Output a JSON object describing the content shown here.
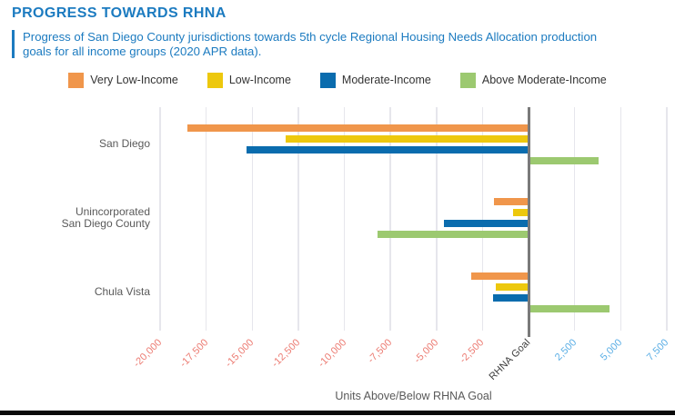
{
  "header": {
    "title": "PROGRESS TOWARDS RHNA",
    "subtitle": "Progress of San Diego County jurisdictions towards 5th cycle Regional Housing Needs Allocation production goals for all income groups (2020 APR data)."
  },
  "colors": {
    "accent_blue": "#1C7BC0",
    "negative_tick": "#EC7B72",
    "positive_tick": "#5AAEE5",
    "zero_tick": "#3D3D3D",
    "axis_text": "#595959",
    "gridline": "#E6E6EC",
    "zero_line": "#7A7A7A",
    "legend_text": "#333333",
    "bottom_bar": "#0A0A0A"
  },
  "chart_data": {
    "type": "bar",
    "orientation": "horizontal",
    "title": "PROGRESS TOWARDS RHNA",
    "xlabel": "Units Above/Below RHNA Goal",
    "ylabel": "",
    "xlim": [
      -20000,
      7500
    ],
    "grid": true,
    "legend_position": "top-center",
    "categories": [
      "San Diego",
      "Unincorporated\nSan Diego County",
      "Chula Vista"
    ],
    "series": [
      {
        "name": "Very Low-Income",
        "color": "#F0964B",
        "values": [
          -18500,
          -1900,
          -3100
        ]
      },
      {
        "name": "Low-Income",
        "color": "#EDC80D",
        "values": [
          -13200,
          -850,
          -1800
        ]
      },
      {
        "name": "Moderate-Income",
        "color": "#0A6CAE",
        "values": [
          -15300,
          -4600,
          -1950
        ]
      },
      {
        "name": "Above Moderate-Income",
        "color": "#9CC970",
        "values": [
          3800,
          -8200,
          4400
        ]
      }
    ],
    "zero_line_label": "RHNA Goal",
    "ticks": [
      {
        "value": -20000,
        "label": "-20,000"
      },
      {
        "value": -17500,
        "label": "-17,500"
      },
      {
        "value": -15000,
        "label": "-15,000"
      },
      {
        "value": -12500,
        "label": "-12,500"
      },
      {
        "value": -10000,
        "label": "-10,000"
      },
      {
        "value": -7500,
        "label": "-7,500"
      },
      {
        "value": -5000,
        "label": "-5,000"
      },
      {
        "value": -2500,
        "label": "-2,500"
      },
      {
        "value": 0,
        "label": "RHNA Goal"
      },
      {
        "value": 2500,
        "label": "2,500"
      },
      {
        "value": 5000,
        "label": "5,000"
      },
      {
        "value": 7500,
        "label": "7,500"
      }
    ]
  }
}
